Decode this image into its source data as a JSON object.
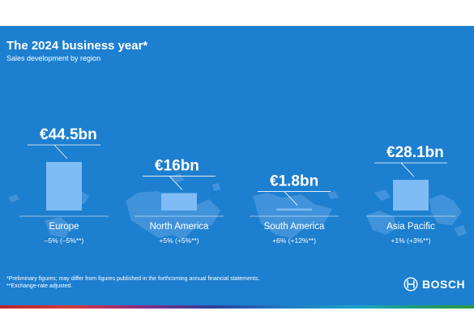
{
  "header": {
    "title": "The 2024 business year*",
    "subtitle": "Sales development by region"
  },
  "chart_data": {
    "type": "bar",
    "title": "The 2024 business year*",
    "subtitle": "Sales development by region",
    "unit": "€bn",
    "categories": [
      "Europe",
      "North America",
      "South America",
      "Asia Pacific"
    ],
    "values": [
      44.5,
      16,
      1.8,
      28.1
    ],
    "value_labels": [
      "€44.5bn",
      "€16bn",
      "€1.8bn",
      "€28.1bn"
    ],
    "changes": [
      "–5% (–5%**)",
      "+5% (+5%**)",
      "+6% (+12%**)",
      "+1% (+3%**)"
    ],
    "grid": false,
    "colors": {
      "bar": "#7fbbf5",
      "background": "#1d7fd0",
      "text": "#ffffff",
      "map": "#4a98dc"
    }
  },
  "footer": {
    "note1": "*Preliminary figures; may differ from figures published in the forthcoming annual financial statements.",
    "note2": "**Exchange-rate adjusted."
  },
  "brand": {
    "name": "BOSCH",
    "icon": "bosch-armature-icon"
  }
}
